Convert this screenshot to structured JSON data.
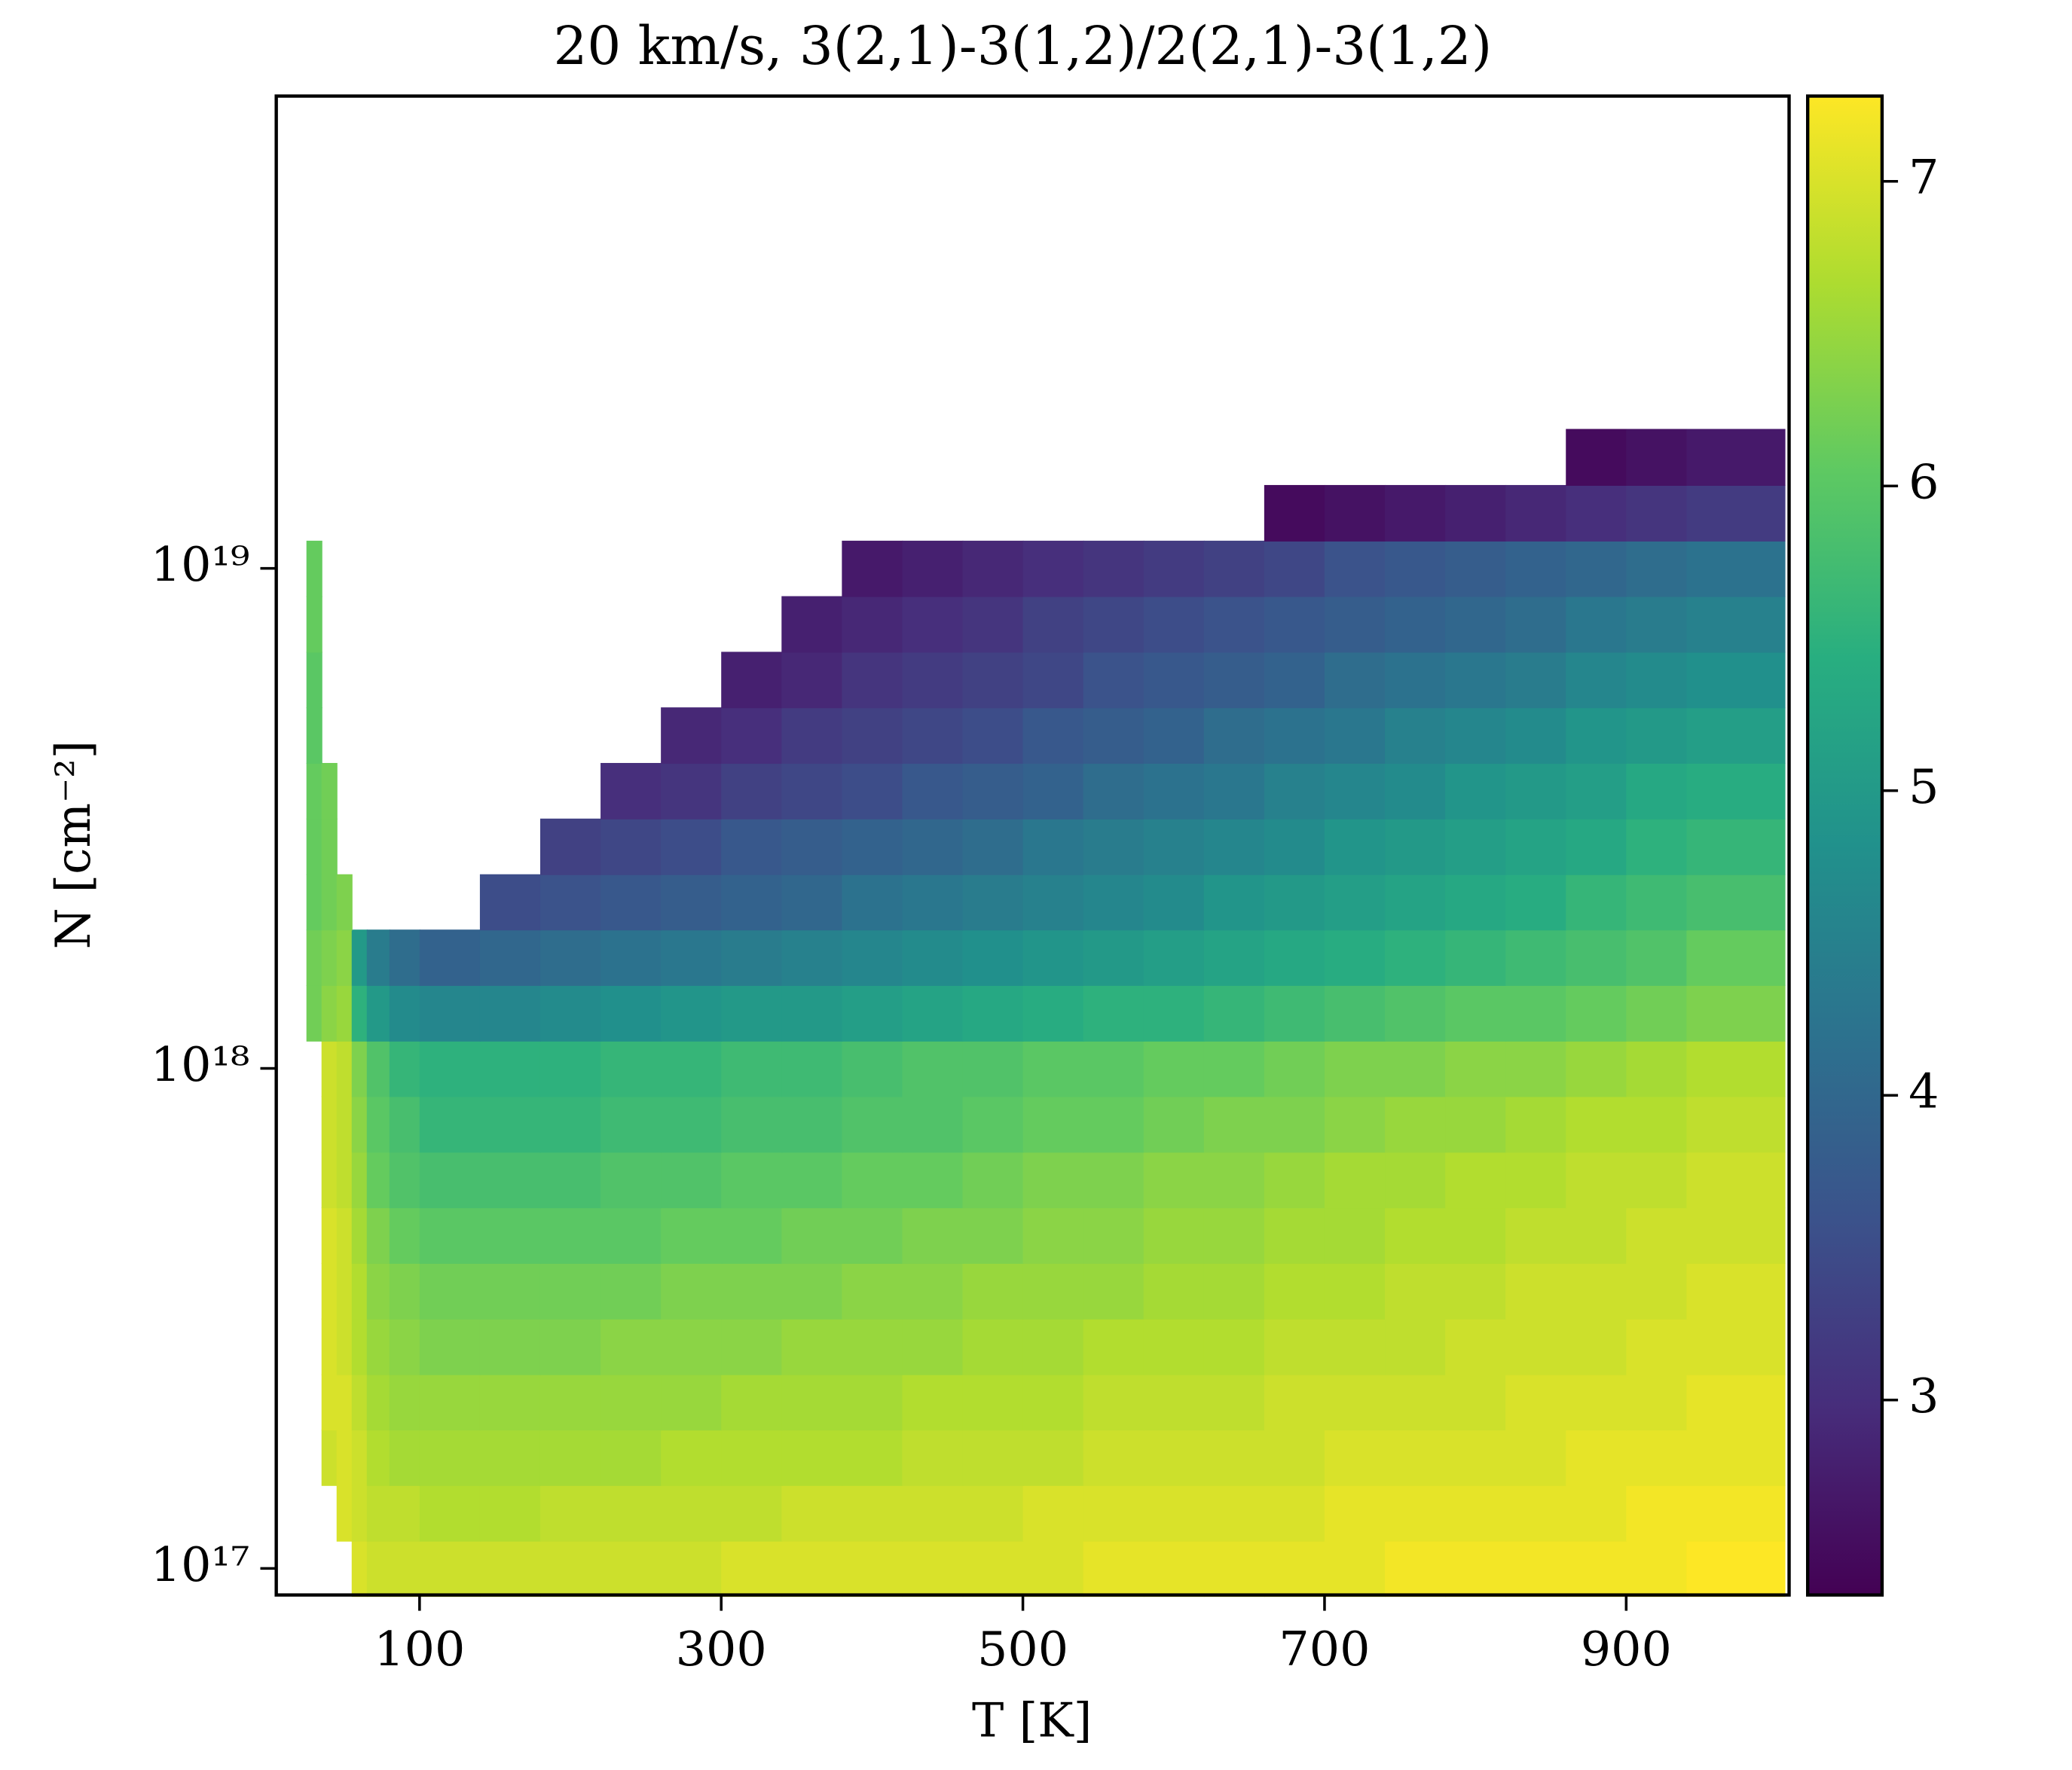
{
  "chart_data": {
    "type": "heatmap",
    "title": "20 km/s, 3(2,1)-3(1,2)/2(2,1)-3(1,2)",
    "xlabel": "T [K]",
    "ylabel": "N [cm⁻²]",
    "colormap": "viridis",
    "ylog": true,
    "xlim": [
      5,
      1008
    ],
    "xticks": [
      100,
      300,
      500,
      700,
      900
    ],
    "ylim": [
      8.85e+16,
      8.8e+19
    ],
    "yticks": [
      {
        "value": 1e+17,
        "label": "10¹⁷"
      },
      {
        "value": 1e+18,
        "label": "10¹⁸"
      },
      {
        "value": 1e+19,
        "label": "10¹⁹"
      }
    ],
    "zlim": [
      2.36,
      7.28
    ],
    "zticks": [
      3,
      4,
      5,
      6,
      7
    ],
    "xbins": [
      25,
      35,
      45,
      55,
      65,
      80,
      100,
      140,
      180,
      220,
      260,
      300,
      340,
      380,
      420,
      460,
      500,
      540,
      580,
      620,
      660,
      700,
      740,
      780,
      820,
      860,
      900,
      940,
      1005
    ],
    "y": [
      1e+17,
      1.29e+17,
      1.67e+17,
      2.15e+17,
      2.78e+17,
      3.59e+17,
      4.64e+17,
      5.99e+17,
      7.74e+17,
      1e+18,
      1.29e+18,
      1.67e+18,
      2.15e+18,
      2.78e+18,
      3.59e+18,
      4.64e+18,
      5.99e+18,
      7.74e+18,
      1e+19,
      1.29e+19,
      1.67e+19
    ],
    "z": [
      [
        null,
        null,
        null,
        7.0,
        6.9,
        6.9,
        6.9,
        6.9,
        6.9,
        6.9,
        6.9,
        7.0,
        7.0,
        7.0,
        7.0,
        7.0,
        7.0,
        7.1,
        7.1,
        7.1,
        7.1,
        7.1,
        7.2,
        7.2,
        7.2,
        7.2,
        7.2,
        7.3
      ],
      [
        null,
        null,
        7.0,
        6.9,
        6.8,
        6.8,
        6.7,
        6.7,
        6.8,
        6.8,
        6.8,
        6.8,
        6.9,
        6.9,
        6.9,
        6.9,
        7.0,
        7.0,
        7.0,
        7.0,
        7.0,
        7.1,
        7.1,
        7.1,
        7.1,
        7.1,
        7.2,
        7.2
      ],
      [
        null,
        6.9,
        7.0,
        6.9,
        6.7,
        6.6,
        6.6,
        6.6,
        6.6,
        6.6,
        6.7,
        6.7,
        6.7,
        6.7,
        6.8,
        6.8,
        6.8,
        6.9,
        6.9,
        6.9,
        6.9,
        7.0,
        7.0,
        7.0,
        7.0,
        7.1,
        7.1,
        7.1
      ],
      [
        null,
        7.0,
        7.0,
        6.8,
        6.6,
        6.5,
        6.5,
        6.5,
        6.5,
        6.5,
        6.5,
        6.6,
        6.6,
        6.6,
        6.7,
        6.7,
        6.7,
        6.8,
        6.8,
        6.8,
        6.9,
        6.9,
        6.9,
        6.9,
        7.0,
        7.0,
        7.0,
        7.1
      ],
      [
        null,
        7.0,
        6.9,
        6.7,
        6.5,
        6.4,
        6.3,
        6.3,
        6.3,
        6.4,
        6.4,
        6.4,
        6.5,
        6.5,
        6.5,
        6.6,
        6.6,
        6.7,
        6.7,
        6.7,
        6.8,
        6.8,
        6.8,
        6.9,
        6.9,
        6.9,
        7.0,
        7.0
      ],
      [
        null,
        7.0,
        6.9,
        6.7,
        6.4,
        6.3,
        6.2,
        6.2,
        6.2,
        6.2,
        6.3,
        6.3,
        6.3,
        6.4,
        6.4,
        6.5,
        6.5,
        6.5,
        6.6,
        6.6,
        6.7,
        6.7,
        6.8,
        6.8,
        6.9,
        6.9,
        6.9,
        7.0
      ],
      [
        null,
        7.0,
        6.9,
        6.6,
        6.3,
        6.1,
        6.0,
        6.0,
        6.0,
        6.0,
        6.1,
        6.1,
        6.2,
        6.2,
        6.3,
        6.3,
        6.4,
        6.4,
        6.5,
        6.5,
        6.6,
        6.6,
        6.7,
        6.7,
        6.8,
        6.8,
        6.9,
        6.9
      ],
      [
        null,
        6.9,
        6.8,
        6.5,
        6.1,
        5.9,
        5.8,
        5.8,
        5.8,
        5.9,
        5.9,
        6.0,
        6.0,
        6.1,
        6.1,
        6.2,
        6.3,
        6.3,
        6.4,
        6.4,
        6.5,
        6.6,
        6.6,
        6.7,
        6.7,
        6.8,
        6.8,
        6.9
      ],
      [
        null,
        6.9,
        6.8,
        6.4,
        6.0,
        5.8,
        5.6,
        5.6,
        5.6,
        5.7,
        5.7,
        5.8,
        5.8,
        5.9,
        5.9,
        6.0,
        6.1,
        6.1,
        6.2,
        6.3,
        6.3,
        6.4,
        6.5,
        6.5,
        6.6,
        6.7,
        6.7,
        6.8
      ],
      [
        null,
        6.9,
        6.8,
        6.3,
        5.9,
        5.6,
        5.5,
        5.5,
        5.5,
        5.6,
        5.6,
        5.7,
        5.7,
        5.8,
        5.9,
        5.9,
        6.0,
        6.0,
        6.1,
        6.1,
        6.2,
        6.3,
        6.3,
        6.4,
        6.4,
        6.5,
        6.6,
        6.7
      ],
      [
        6.2,
        6.4,
        6.5,
        5.5,
        5.0,
        4.7,
        4.6,
        4.6,
        4.7,
        4.8,
        4.9,
        5.0,
        5.0,
        5.1,
        5.2,
        5.3,
        5.4,
        5.5,
        5.5,
        5.6,
        5.7,
        5.8,
        5.9,
        6.0,
        6.0,
        6.1,
        6.2,
        6.3
      ],
      [
        6.2,
        6.3,
        6.4,
        5.0,
        4.4,
        4.1,
        3.9,
        4.0,
        4.1,
        4.2,
        4.3,
        4.4,
        4.5,
        4.6,
        4.7,
        4.8,
        4.9,
        5.0,
        5.1,
        5.2,
        5.3,
        5.4,
        5.5,
        5.6,
        5.7,
        5.8,
        5.9,
        6.1
      ],
      [
        6.1,
        6.2,
        6.3,
        null,
        null,
        null,
        null,
        3.5,
        3.6,
        3.7,
        3.8,
        3.9,
        4.0,
        4.2,
        4.3,
        4.4,
        4.5,
        4.6,
        4.7,
        4.9,
        5.0,
        5.1,
        5.2,
        5.3,
        5.4,
        5.6,
        5.7,
        5.8
      ],
      [
        6.1,
        6.2,
        null,
        null,
        null,
        null,
        null,
        null,
        3.3,
        3.4,
        3.5,
        3.7,
        3.8,
        3.9,
        4.0,
        4.1,
        4.3,
        4.4,
        4.5,
        4.6,
        4.7,
        4.9,
        5.0,
        5.1,
        5.2,
        5.3,
        5.5,
        5.6
      ],
      [
        6.1,
        6.2,
        null,
        null,
        null,
        null,
        null,
        null,
        null,
        3.0,
        3.1,
        3.3,
        3.4,
        3.5,
        3.7,
        3.8,
        3.9,
        4.1,
        4.2,
        4.3,
        4.5,
        4.6,
        4.7,
        4.9,
        5.0,
        5.1,
        5.3,
        5.4
      ],
      [
        6.0,
        null,
        null,
        null,
        null,
        null,
        null,
        null,
        null,
        null,
        2.9,
        3.0,
        3.2,
        3.3,
        3.4,
        3.5,
        3.7,
        3.8,
        3.9,
        4.1,
        4.2,
        4.3,
        4.5,
        4.6,
        4.7,
        4.9,
        5.0,
        5.1
      ],
      [
        6.0,
        null,
        null,
        null,
        null,
        null,
        null,
        null,
        null,
        null,
        null,
        2.8,
        2.9,
        3.1,
        3.2,
        3.3,
        3.4,
        3.6,
        3.7,
        3.8,
        3.9,
        4.1,
        4.2,
        4.3,
        4.4,
        4.6,
        4.7,
        4.8
      ],
      [
        6.1,
        null,
        null,
        null,
        null,
        null,
        null,
        null,
        null,
        null,
        null,
        null,
        2.8,
        2.9,
        3.0,
        3.1,
        3.3,
        3.4,
        3.5,
        3.6,
        3.7,
        3.8,
        3.9,
        4.0,
        4.1,
        4.3,
        4.4,
        4.5
      ],
      [
        6.1,
        null,
        null,
        null,
        null,
        null,
        null,
        null,
        null,
        null,
        null,
        null,
        null,
        2.7,
        2.8,
        2.9,
        3.0,
        3.1,
        3.2,
        3.3,
        3.4,
        3.6,
        3.7,
        3.8,
        3.9,
        4.0,
        4.1,
        4.2
      ],
      [
        null,
        null,
        null,
        null,
        null,
        null,
        null,
        null,
        null,
        null,
        null,
        null,
        null,
        null,
        null,
        null,
        null,
        null,
        null,
        null,
        2.5,
        2.6,
        2.7,
        2.8,
        2.9,
        3.0,
        3.1,
        3.2
      ],
      [
        null,
        null,
        null,
        null,
        null,
        null,
        null,
        null,
        null,
        null,
        null,
        null,
        null,
        null,
        null,
        null,
        null,
        null,
        null,
        null,
        null,
        null,
        null,
        null,
        null,
        2.5,
        2.6,
        2.7
      ]
    ]
  }
}
